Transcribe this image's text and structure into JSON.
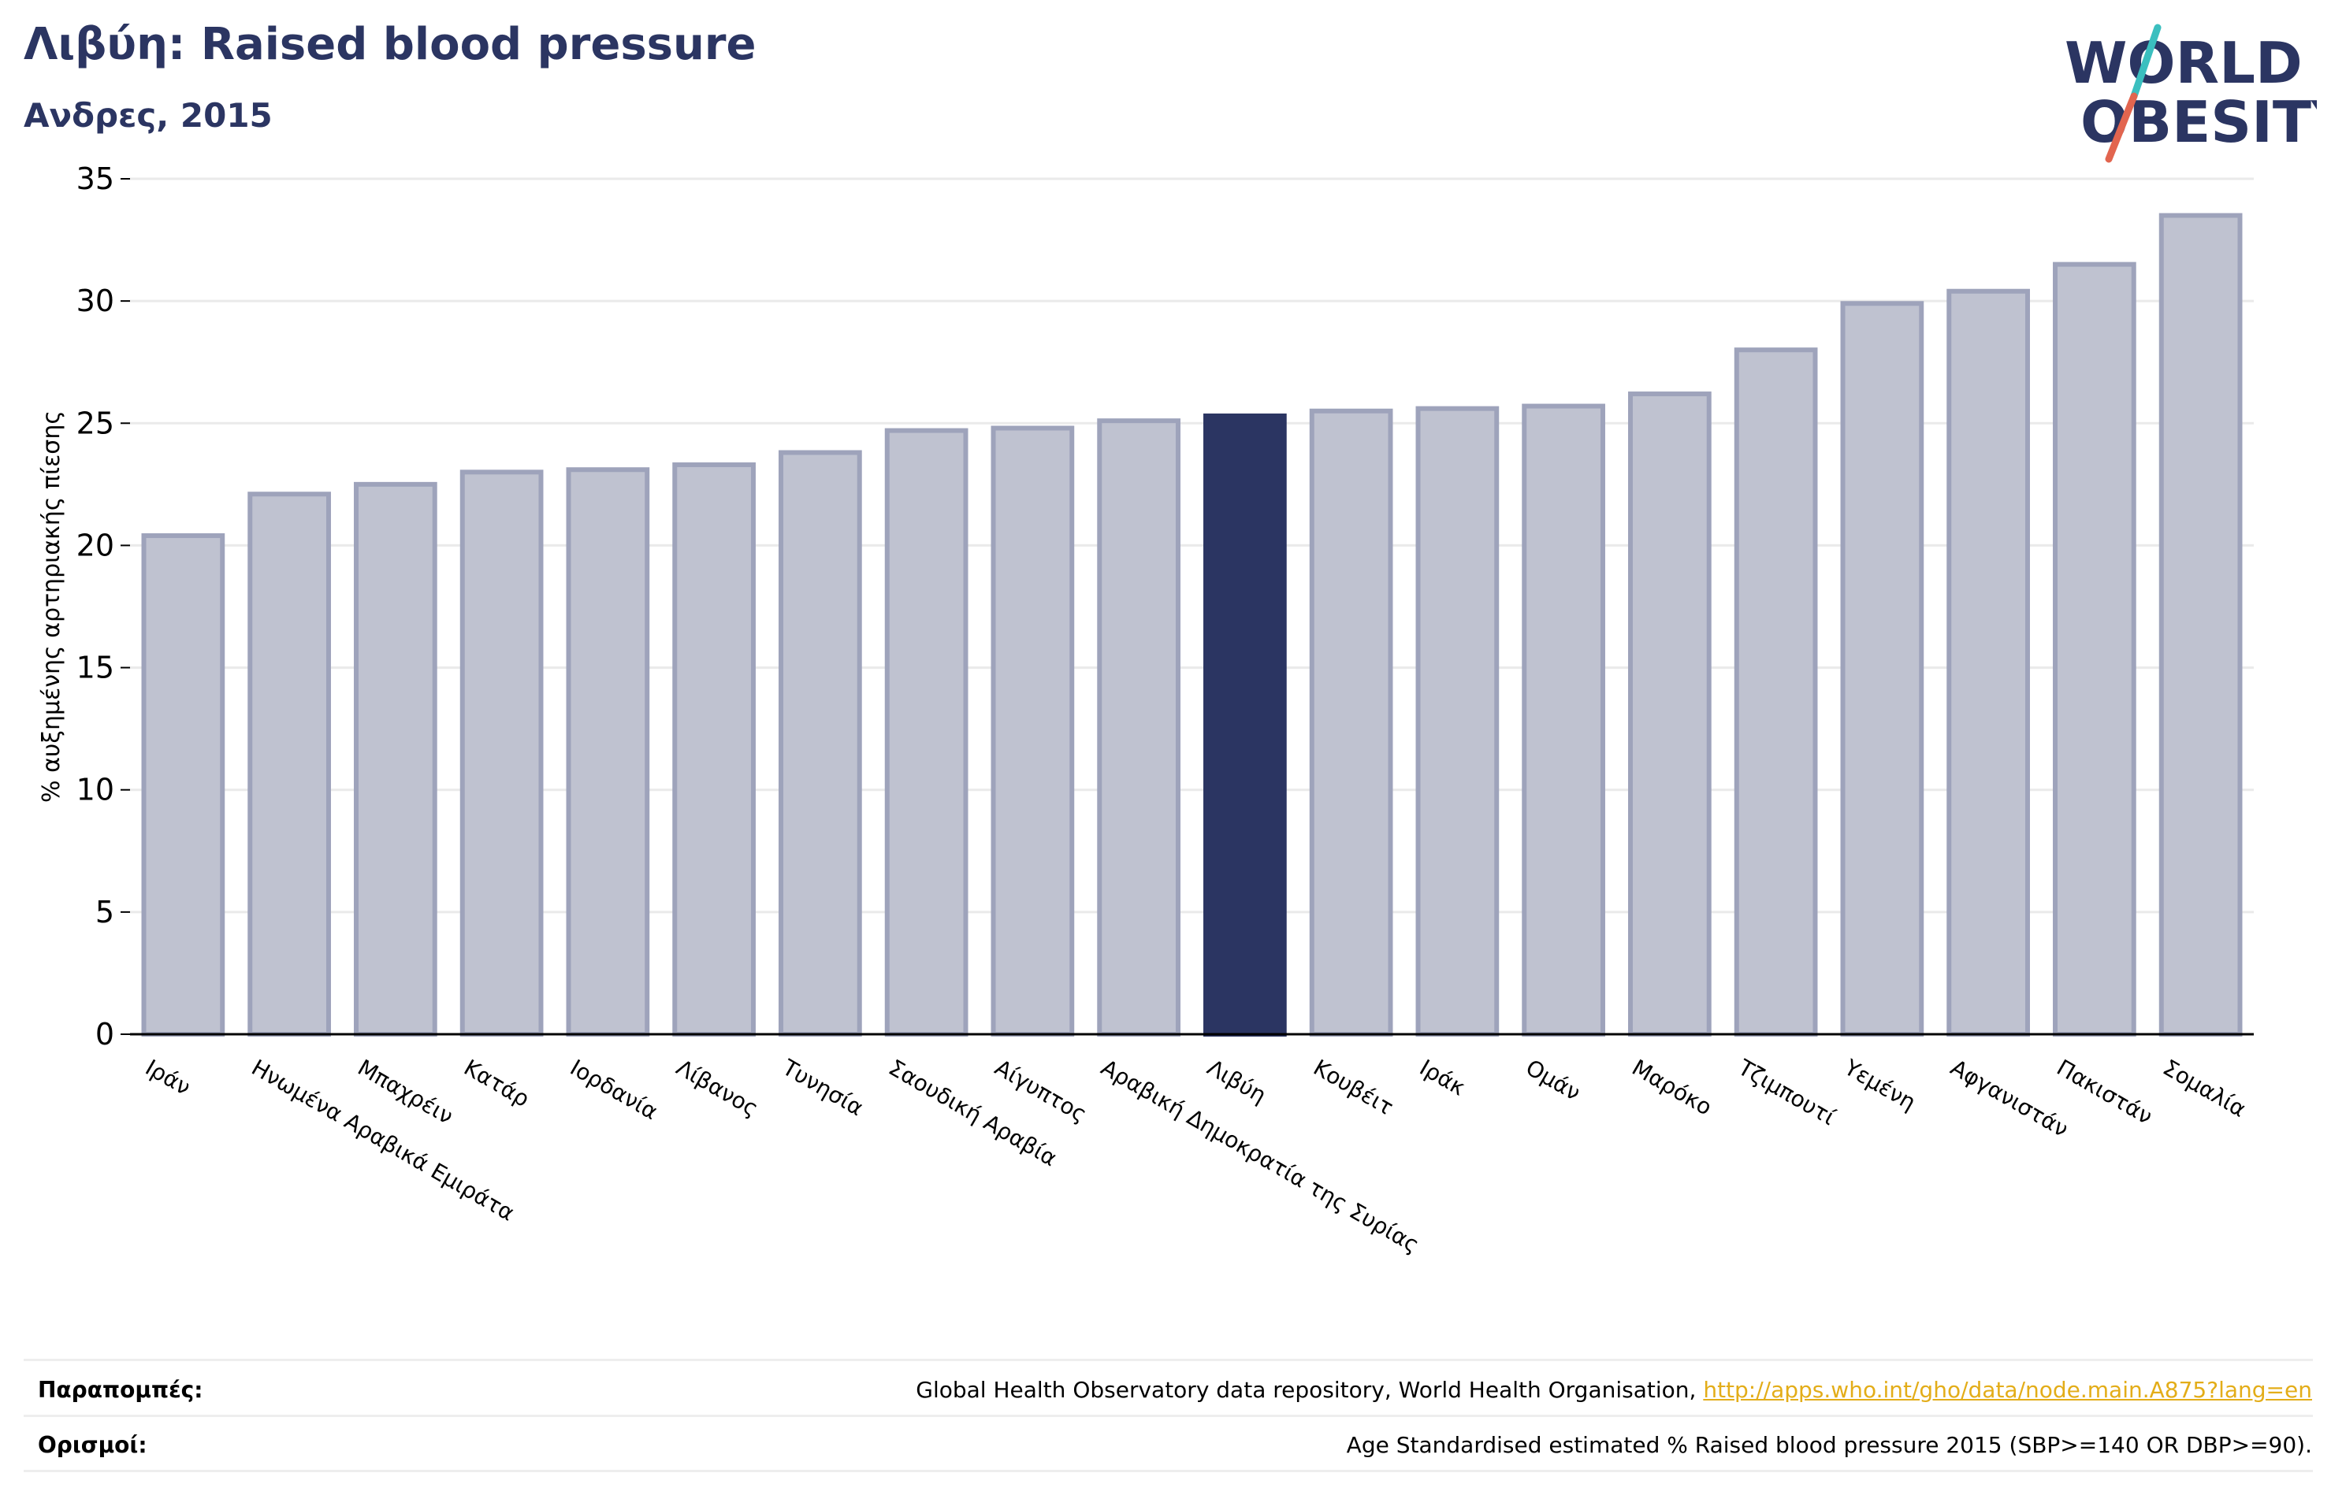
{
  "header": {
    "title": "Λιβύη: Raised blood pressure",
    "subtitle": "Ανδρες, 2015"
  },
  "logo": {
    "line1": "WORLD",
    "line2": "OBESITY",
    "colors": {
      "text": "#2b3562",
      "slash_top": "#3bbfbf",
      "slash_bottom": "#e2654f"
    }
  },
  "colors": {
    "bar": "#bfc2d0",
    "bar_border": "#9ea3bb",
    "highlight": "#2b3562",
    "grid": "#eaeaea",
    "axis": "#000000",
    "link": "#e3ad19"
  },
  "chart_data": {
    "type": "bar",
    "title": "Λιβύη: Raised blood pressure",
    "subtitle": "Ανδρες, 2015",
    "xlabel": "",
    "ylabel": "% αυξημένης αρτηριακής πίεσης",
    "ylim": [
      0,
      35
    ],
    "yticks": [
      0,
      5,
      10,
      15,
      20,
      25,
      30,
      35
    ],
    "grid": true,
    "highlight": "Λιβύη",
    "categories": [
      "Ιράν",
      "Ηνωμένα Αραβικά Εμιράτα",
      "Μπαχρέιν",
      "Κατάρ",
      "Ιορδανία",
      "Λίβανος",
      "Τυνησία",
      "Σαουδική Αραβία",
      "Αίγυπτος",
      "Αραβική Δημοκρατία της Συρίας",
      "Λιβύη",
      "Κουβέιτ",
      "Ιράκ",
      "Ομάν",
      "Μαρόκο",
      "Τζιμπουτί",
      "Υεμένη",
      "Αφγανιστάν",
      "Πακιστάν",
      "Σομαλία"
    ],
    "values": [
      20.4,
      22.1,
      22.5,
      23.0,
      23.1,
      23.3,
      23.8,
      24.7,
      24.8,
      25.1,
      25.3,
      25.5,
      25.6,
      25.7,
      26.2,
      28.0,
      29.9,
      30.4,
      31.5,
      33.5
    ]
  },
  "footer": {
    "references_label": "Παραπομπές:",
    "references_text": "Global Health Observatory data repository, World Health Organisation, ",
    "references_link": "http://apps.who.int/gho/data/node.main.A875?lang=en",
    "definitions_label": "Ορισμοί:",
    "definitions_text": "Age Standardised estimated % Raised blood pressure 2015 (SBP>=140 OR DBP>=90)."
  }
}
